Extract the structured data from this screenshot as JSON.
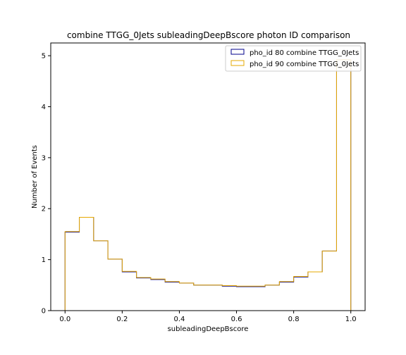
{
  "chart_data": {
    "type": "histogram",
    "title": "combine TTGG_0Jets subleadingDeepBscore photon ID comparison",
    "xlabel": "subleadingDeepBscore",
    "ylabel": "Number of Events",
    "xlim": [
      -0.05,
      1.05
    ],
    "ylim": [
      0,
      5.25
    ],
    "xticks": [
      0.0,
      0.2,
      0.4,
      0.6,
      0.8,
      1.0
    ],
    "xtick_labels": [
      "0.0",
      "0.2",
      "0.4",
      "0.6",
      "0.8",
      "1.0"
    ],
    "yticks": [
      0,
      1,
      2,
      3,
      4,
      5
    ],
    "ytick_labels": [
      "0",
      "1",
      "2",
      "3",
      "4",
      "5"
    ],
    "grid": false,
    "legend_position": "top-right",
    "bin_edges": [
      0.0,
      0.05,
      0.1,
      0.15,
      0.2,
      0.25,
      0.3,
      0.35,
      0.4,
      0.45,
      0.5,
      0.55,
      0.6,
      0.65,
      0.7,
      0.75,
      0.8,
      0.85,
      0.9,
      0.95,
      1.0
    ],
    "series": [
      {
        "name": "pho_id 80 combine TTGG_0Jets",
        "color": "#00008b",
        "values": [
          1.54,
          1.83,
          1.37,
          1.01,
          0.76,
          0.64,
          0.61,
          0.56,
          0.54,
          0.5,
          0.5,
          0.48,
          0.47,
          0.47,
          0.5,
          0.56,
          0.66,
          0.76,
          1.17,
          4.92
        ]
      },
      {
        "name": "pho_id 90 combine TTGG_0Jets",
        "color": "#e6a800",
        "values": [
          1.55,
          1.83,
          1.37,
          1.01,
          0.77,
          0.65,
          0.62,
          0.57,
          0.54,
          0.5,
          0.5,
          0.49,
          0.48,
          0.48,
          0.5,
          0.57,
          0.67,
          0.76,
          1.17,
          4.92
        ]
      }
    ]
  }
}
